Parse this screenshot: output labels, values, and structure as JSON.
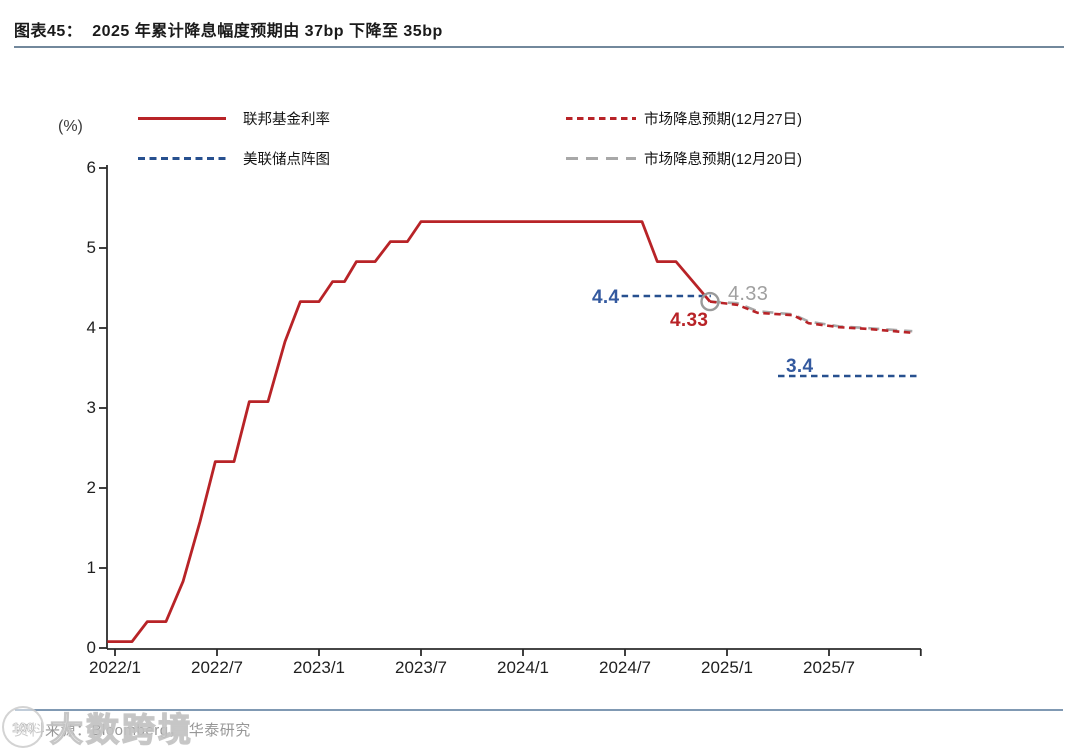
{
  "header": {
    "title": "图表45：  2025 年累计降息幅度预期由 37bp 下降至 35bp"
  },
  "legend": {
    "items": [
      {
        "label": "联邦基金利率",
        "swatch": "solid-red"
      },
      {
        "label": "美联储点阵图",
        "swatch": "dash-blue"
      },
      {
        "label": "市场降息预期(12月27日)",
        "swatch": "dash-red"
      },
      {
        "label": "市场降息预期(12月20日)",
        "swatch": "dash-gray"
      }
    ]
  },
  "chart_data": {
    "type": "line",
    "title": "2025 年累计降息幅度预期由 37bp 下降至 35bp",
    "unit": "(%)",
    "ylim": [
      0,
      6
    ],
    "yticks": [
      0,
      1,
      2,
      3,
      4,
      5,
      6
    ],
    "x_unit": "months since 2022/1",
    "xticks": [
      {
        "month": 0,
        "label": "2022/1"
      },
      {
        "month": 6,
        "label": "2022/7"
      },
      {
        "month": 12,
        "label": "2023/1"
      },
      {
        "month": 18,
        "label": "2023/7"
      },
      {
        "month": 24,
        "label": "2024/1"
      },
      {
        "month": 30,
        "label": "2024/7"
      },
      {
        "month": 36,
        "label": "2025/1"
      },
      {
        "month": 42,
        "label": "2025/7"
      }
    ],
    "end_tick_month": 47.4,
    "series": [
      {
        "name": "联邦基金利率",
        "style": "solid",
        "color": "#b82327",
        "points": [
          [
            -0.45,
            0.08
          ],
          [
            1,
            0.08
          ],
          [
            1.9,
            0.33
          ],
          [
            3,
            0.33
          ],
          [
            4,
            0.83
          ],
          [
            5,
            1.58
          ],
          [
            5.9,
            2.33
          ],
          [
            7,
            2.33
          ],
          [
            7.9,
            3.08
          ],
          [
            9,
            3.08
          ],
          [
            10,
            3.83
          ],
          [
            10.9,
            4.33
          ],
          [
            12,
            4.33
          ],
          [
            12.8,
            4.58
          ],
          [
            13.5,
            4.58
          ],
          [
            14.2,
            4.83
          ],
          [
            15.3,
            4.83
          ],
          [
            16.2,
            5.08
          ],
          [
            17.2,
            5.08
          ],
          [
            18,
            5.33
          ],
          [
            31,
            5.33
          ],
          [
            31.9,
            4.83
          ],
          [
            33,
            4.83
          ],
          [
            35,
            4.33
          ]
        ]
      },
      {
        "name": "美联储点阵图",
        "style": "dash",
        "color": "#27508f",
        "segments": [
          {
            "points": [
              [
                29.8,
                4.4
              ],
              [
                35.05,
                4.4
              ]
            ],
            "value": 4.4
          },
          {
            "points": [
              [
                39.0,
                3.4
              ],
              [
                47.2,
                3.4
              ]
            ],
            "value": 3.4
          }
        ]
      },
      {
        "name": "市场降息预期(12月27日)",
        "style": "dash",
        "color": "#b82327",
        "points": [
          [
            35,
            4.33
          ],
          [
            36.6,
            4.29
          ],
          [
            37.8,
            4.19
          ],
          [
            39.9,
            4.16
          ],
          [
            40.8,
            4.06
          ],
          [
            42.6,
            4.01
          ],
          [
            44.2,
            3.99
          ],
          [
            46.9,
            3.94
          ]
        ]
      },
      {
        "name": "市场降息预期(12月20日)",
        "style": "longdash",
        "color": "#a8a8a8",
        "points": [
          [
            35,
            4.33
          ],
          [
            36.6,
            4.31
          ],
          [
            37.8,
            4.21
          ],
          [
            39.9,
            4.17
          ],
          [
            40.8,
            4.08
          ],
          [
            42.6,
            4.02
          ],
          [
            44.2,
            4.0
          ],
          [
            46.9,
            3.96
          ]
        ]
      }
    ],
    "marker": {
      "month": 35,
      "value": 4.33,
      "color": "#9a9a9a"
    },
    "annotations": [
      {
        "text": "4.4"
      },
      {
        "text": "4.33"
      },
      {
        "text": "4.33"
      },
      {
        "text": "3.4"
      }
    ]
  },
  "footer": {
    "source": "资料来源：Bloomberg， 华泰研究"
  },
  "watermark": {
    "logo": "100",
    "text": "大数跨境"
  }
}
